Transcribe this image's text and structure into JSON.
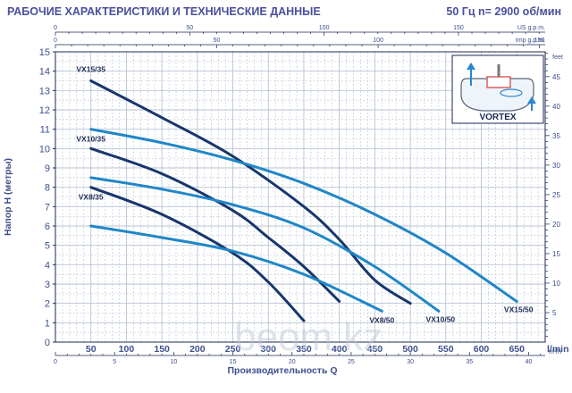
{
  "header": {
    "title": "РАБОЧИЕ ХАРАКТЕРИСТИКИ И ТЕХНИЧЕСКИЕ ДАННЫЕ",
    "spec": "50 Гц    n= 2900 об/мин"
  },
  "watermark": "beom.kz",
  "vortex_label": "VORTEX",
  "colors": {
    "text": "#3d4f8c",
    "grid": "#b8c2d2",
    "dark_curve": "#17366c",
    "light_curve": "#1f86c8"
  },
  "chart_data": {
    "type": "line",
    "xlabel": "Производительность Q",
    "ylabel": "Напор H (метры)",
    "x_unit_label": "l/min",
    "xlim": [
      0,
      690
    ],
    "ylim": [
      0,
      15
    ],
    "grid": true,
    "axes": {
      "bottom_lmin": {
        "unit": "l/min",
        "ticks": [
          50,
          100,
          150,
          200,
          250,
          300,
          350,
          400,
          450,
          500,
          550,
          600,
          650
        ]
      },
      "bottom_m3h": {
        "unit": "m³/h",
        "ticks": [
          0,
          5,
          10,
          15,
          20,
          25,
          30,
          35,
          40
        ]
      },
      "top_us_gpm": {
        "unit": "US g.p.m.",
        "ticks": [
          0,
          50,
          100,
          150
        ]
      },
      "top_imp_gpm": {
        "unit": "Imp g.p.m.",
        "ticks": [
          0,
          50,
          100,
          150
        ]
      },
      "left_m": {
        "unit": "m",
        "ticks": [
          0,
          1,
          2,
          3,
          4,
          5,
          6,
          7,
          8,
          9,
          10,
          11,
          12,
          13,
          14,
          15
        ]
      },
      "right_feet": {
        "unit": "feet",
        "ticks": [
          5,
          10,
          15,
          20,
          25,
          30,
          35,
          40,
          45
        ]
      }
    },
    "series": [
      {
        "name": "VX15/35",
        "color": "dark",
        "x": [
          50,
          150,
          250,
          350,
          400,
          450,
          500
        ],
        "y": [
          13.5,
          11.6,
          9.6,
          7.0,
          5.3,
          3.2,
          2.0
        ]
      },
      {
        "name": "VX15/50",
        "color": "light",
        "x": [
          50,
          150,
          250,
          350,
          450,
          550,
          650
        ],
        "y": [
          11.0,
          10.3,
          9.4,
          8.2,
          6.6,
          4.6,
          2.1
        ]
      },
      {
        "name": "VX10/35",
        "color": "dark",
        "x": [
          50,
          150,
          250,
          300,
          350,
          400
        ],
        "y": [
          10.0,
          8.7,
          6.8,
          5.4,
          3.9,
          2.1
        ]
      },
      {
        "name": "VX10/50",
        "color": "light",
        "x": [
          50,
          150,
          250,
          350,
          450,
          540
        ],
        "y": [
          8.5,
          7.9,
          7.1,
          5.9,
          3.9,
          1.6
        ]
      },
      {
        "name": "VX8/35",
        "color": "dark",
        "x": [
          50,
          150,
          250,
          300,
          350
        ],
        "y": [
          8.0,
          6.6,
          4.6,
          3.1,
          1.1
        ]
      },
      {
        "name": "VX8/50",
        "color": "light",
        "x": [
          50,
          150,
          250,
          350,
          460
        ],
        "y": [
          6.0,
          5.4,
          4.7,
          3.5,
          1.6
        ]
      }
    ]
  }
}
